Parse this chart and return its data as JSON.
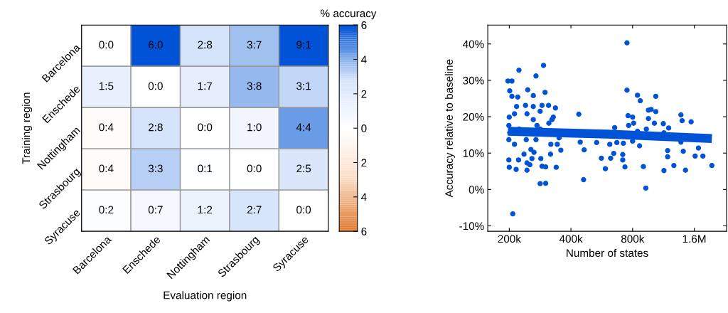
{
  "chart_data": [
    {
      "type": "heatmap",
      "clabel": "% accuracy",
      "xlabel": "Evaluation region",
      "ylabel": "Training region",
      "categories": [
        "Barcelona",
        "Enschede",
        "Nottingham",
        "Strasbourg",
        "Syracuse"
      ],
      "y_categories": [
        "Barcelona",
        "Enschede",
        "Nottingham",
        "Strasbourg",
        "Syracuse"
      ],
      "cells": [
        [
          0.0,
          6.0,
          2.8,
          3.7,
          9.1
        ],
        [
          1.5,
          0.0,
          1.7,
          3.8,
          3.1
        ],
        [
          -0.4,
          2.8,
          0.0,
          1.0,
          4.4
        ],
        [
          -0.4,
          3.3,
          0.1,
          0.0,
          2.5
        ],
        [
          0.2,
          0.7,
          1.2,
          2.7,
          0.0
        ]
      ],
      "cell_labels": [
        [
          "0:0",
          "6:0",
          "2:8",
          "3:7",
          "9:1"
        ],
        [
          "1:5",
          "0:0",
          "1:7",
          "3:8",
          "3:1"
        ],
        [
          "0:4",
          "2:8",
          "0:0",
          "1:0",
          "4:4"
        ],
        [
          "0:4",
          "3:3",
          "0:1",
          "0:0",
          "2:5"
        ],
        [
          "0:2",
          "0:7",
          "1:2",
          "2:7",
          "0:0"
        ]
      ],
      "clim": [
        -6,
        6
      ],
      "cticks": [
        {
          "value": 6,
          "label": "6"
        },
        {
          "value": 4,
          "label": "4"
        },
        {
          "value": 2,
          "label": "2"
        },
        {
          "value": 0,
          "label": "0"
        },
        {
          "value": -2,
          "label": "2"
        },
        {
          "value": -4,
          "label": "4"
        },
        {
          "value": -6,
          "label": "6"
        }
      ]
    },
    {
      "type": "scatter",
      "xlabel": "Number of states",
      "ylabel": "Accuracy relative to baseline",
      "log": "x",
      "xlim": [
        157000,
        2300000
      ],
      "ylim": [
        -11.5,
        45.2
      ],
      "xticks": [
        {
          "value": 200000,
          "label": "200k"
        },
        {
          "value": 400000,
          "label": "400k"
        },
        {
          "value": 800000,
          "label": "800k"
        },
        {
          "value": 1600000,
          "label": "1.6M"
        }
      ],
      "yticks": [
        {
          "value": -10,
          "label": "-10%"
        },
        {
          "value": 0,
          "label": "0%"
        },
        {
          "value": 10,
          "label": "10%"
        },
        {
          "value": 20,
          "label": "20%"
        },
        {
          "value": 30,
          "label": "30%"
        },
        {
          "value": 40,
          "label": "40%"
        }
      ],
      "series": [
        {
          "type": "scatter",
          "color": "#0052d6",
          "x": [
            197000,
            206000,
            201000,
            206000,
            223000,
            270000,
            294000,
            299000,
            246000,
            262000,
            220000,
            200000,
            199000,
            199000,
            199000,
            200000,
            208000,
            216000,
            222000,
            212000,
            217000,
            240000,
            262000,
            289000,
            311000,
            336000,
            328000,
            283000,
            244000,
            262000,
            223000,
            242000,
            255000,
            236000,
            244000,
            258000,
            252000,
            244000,
            285000,
            289000,
            301000,
            283000,
            301000,
            318000,
            319000,
            343000,
            339000,
            357000,
            350000,
            273000,
            312000,
            323000,
            437000,
            444000,
            464000,
            461000,
            534000,
            563000,
            589000,
            625000,
            619000,
            654000,
            647000,
            670000,
            716000,
            716000,
            734000,
            751000,
            751000,
            760000,
            800000,
            765000,
            721000,
            809000,
            800000,
            845000,
            872000,
            845000,
            865000,
            903000,
            928000,
            934000,
            956000,
            985000,
            956000,
            1038000,
            1038000,
            1022000,
            1130000,
            1138000,
            1186000,
            1186000,
            1138000,
            1200000,
            1272000,
            1377000,
            1396000,
            1414000,
            1450000,
            1545000,
            1616000,
            1677000,
            1763000,
            1950000,
            1377000,
            212000,
            270000,
            283000,
            201000,
            264000
          ],
          "values": [
            29.8,
            29.8,
            27.1,
            25.6,
            32.8,
            31.2,
            34.1,
            26.7,
            27.4,
            25.8,
            25.4,
            19.9,
            17.6,
            13.7,
            8.1,
            6.1,
            -6.7,
            5.5,
            8.1,
            12.4,
            22.8,
            23.1,
            22.8,
            23.1,
            23.1,
            22.4,
            19.9,
            21.5,
            20.8,
            19.2,
            16.6,
            13.7,
            11.0,
            9.7,
            7.3,
            8.5,
            6.8,
            5.3,
            8.5,
            6.4,
            6.2,
            1.6,
            1.7,
            9.7,
            12.4,
            12.4,
            6.1,
            10.8,
            14.2,
            17.6,
            18.2,
            19.2,
            20.7,
            13.0,
            10.9,
            2.7,
            12.9,
            8.6,
            5.7,
            8.6,
            12.4,
            17.0,
            9.9,
            12.9,
            9.6,
            8.1,
            6.2,
            40.3,
            27.3,
            20.3,
            19.9,
            17.6,
            12.7,
            18.2,
            13.3,
            25.9,
            24.4,
            16.0,
            12.0,
            6.3,
            0.4,
            16.6,
            21.8,
            22.0,
            19.5,
            25.6,
            21.4,
            18.2,
            18.1,
            15.6,
            10.7,
            9.0,
            5.2,
            16.9,
            6.6,
            20.5,
            18.9,
            10.5,
            5.3,
            18.6,
            9.2,
            11.4,
            9.2,
            6.6,
            13.0,
            20.8,
            13.7,
            16.6,
            15.6,
            10.2
          ]
        },
        {
          "type": "line",
          "color": "#0052d6",
          "x": [
            197000,
            600000,
            1950000
          ],
          "values": [
            16.0,
            15.2,
            14.0
          ]
        }
      ]
    }
  ]
}
